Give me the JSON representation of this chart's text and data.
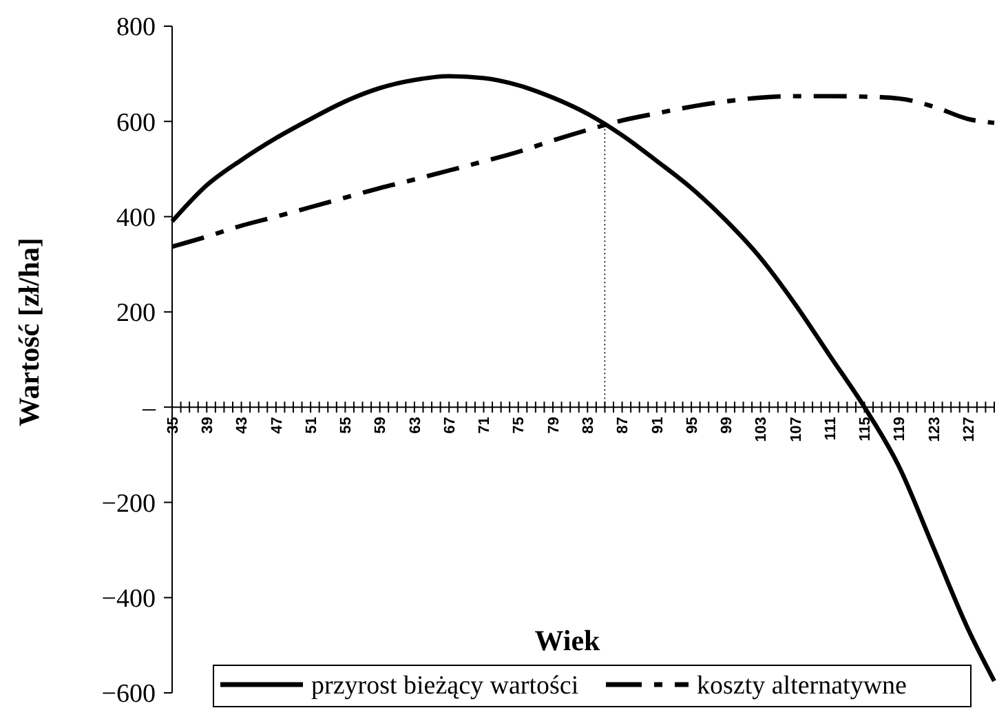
{
  "chart_data": {
    "type": "line",
    "xlabel": "Wiek",
    "ylabel": "Wartość [zł/ha]",
    "xlim": [
      35,
      130
    ],
    "ylim": [
      -600,
      800
    ],
    "yticks": [
      -600,
      -400,
      -200,
      {
        "value": 0,
        "label": "–"
      },
      200,
      400,
      600,
      800
    ],
    "xticks": [
      35,
      {
        "value": 36,
        "label": null
      },
      {
        "value": 37,
        "label": null
      },
      {
        "value": 38,
        "label": null
      },
      39,
      {
        "value": 40,
        "label": null
      },
      {
        "value": 41,
        "label": null
      },
      {
        "value": 42,
        "label": null
      },
      43,
      {
        "value": 44,
        "label": null
      },
      {
        "value": 45,
        "label": null
      },
      {
        "value": 46,
        "label": null
      },
      47,
      {
        "value": 48,
        "label": null
      },
      {
        "value": 49,
        "label": null
      },
      {
        "value": 50,
        "label": null
      },
      51,
      {
        "value": 52,
        "label": null
      },
      {
        "value": 53,
        "label": null
      },
      {
        "value": 54,
        "label": null
      },
      55,
      {
        "value": 56,
        "label": null
      },
      {
        "value": 57,
        "label": null
      },
      {
        "value": 58,
        "label": null
      },
      59,
      {
        "value": 60,
        "label": null
      },
      {
        "value": 61,
        "label": null
      },
      {
        "value": 62,
        "label": null
      },
      63,
      {
        "value": 64,
        "label": null
      },
      {
        "value": 65,
        "label": null
      },
      {
        "value": 66,
        "label": null
      },
      67,
      {
        "value": 68,
        "label": null
      },
      {
        "value": 69,
        "label": null
      },
      {
        "value": 70,
        "label": null
      },
      71,
      {
        "value": 72,
        "label": null
      },
      {
        "value": 73,
        "label": null
      },
      {
        "value": 74,
        "label": null
      },
      75,
      {
        "value": 76,
        "label": null
      },
      {
        "value": 77,
        "label": null
      },
      {
        "value": 78,
        "label": null
      },
      79,
      {
        "value": 80,
        "label": null
      },
      {
        "value": 81,
        "label": null
      },
      {
        "value": 82,
        "label": null
      },
      83,
      {
        "value": 84,
        "label": null
      },
      {
        "value": 85,
        "label": null
      },
      {
        "value": 86,
        "label": null
      },
      87,
      {
        "value": 88,
        "label": null
      },
      {
        "value": 89,
        "label": null
      },
      {
        "value": 90,
        "label": null
      },
      91,
      {
        "value": 92,
        "label": null
      },
      {
        "value": 93,
        "label": null
      },
      {
        "value": 94,
        "label": null
      },
      95,
      {
        "value": 96,
        "label": null
      },
      {
        "value": 97,
        "label": null
      },
      {
        "value": 98,
        "label": null
      },
      99,
      {
        "value": 100,
        "label": null
      },
      {
        "value": 101,
        "label": null
      },
      {
        "value": 102,
        "label": null
      },
      103,
      {
        "value": 104,
        "label": null
      },
      {
        "value": 105,
        "label": null
      },
      {
        "value": 106,
        "label": null
      },
      107,
      {
        "value": 108,
        "label": null
      },
      {
        "value": 109,
        "label": null
      },
      {
        "value": 110,
        "label": null
      },
      111,
      {
        "value": 112,
        "label": null
      },
      {
        "value": 113,
        "label": null
      },
      {
        "value": 114,
        "label": null
      },
      115,
      {
        "value": 116,
        "label": null
      },
      {
        "value": 117,
        "label": null
      },
      {
        "value": 118,
        "label": null
      },
      119,
      {
        "value": 120,
        "label": null
      },
      {
        "value": 121,
        "label": null
      },
      {
        "value": 122,
        "label": null
      },
      123,
      {
        "value": 124,
        "label": null
      },
      {
        "value": 125,
        "label": null
      },
      {
        "value": 126,
        "label": null
      },
      127,
      {
        "value": 128,
        "label": null
      },
      {
        "value": 129,
        "label": null
      },
      {
        "value": 130,
        "label": null
      }
    ],
    "x": [
      35,
      39,
      43,
      47,
      51,
      55,
      59,
      63,
      67,
      71,
      75,
      79,
      83,
      87,
      91,
      95,
      99,
      103,
      107,
      111,
      115,
      119,
      123,
      127,
      130
    ],
    "series": [
      {
        "name": "przyrost bieżący wartości",
        "color": "#000000",
        "line_style": "solid",
        "values": [
          390,
          466,
          519,
          565,
          605,
          642,
          670,
          687,
          695,
          691,
          676,
          650,
          616,
          571,
          517,
          460,
          392,
          313,
          216,
          108,
          0,
          -125,
          -296,
          -467,
          -575
        ]
      },
      {
        "name": "koszty alternatywne",
        "color": "#000000",
        "line_style": "dashed",
        "values": [
          337,
          358,
          381,
          400,
          420,
          440,
          460,
          478,
          497,
          516,
          536,
          560,
          582,
          602,
          617,
          631,
          642,
          650,
          653,
          653,
          652,
          648,
          631,
          605,
          597
        ]
      }
    ],
    "ref_lines": [
      {
        "axis": "x",
        "value": 85,
        "line_style": "dotted",
        "color": "#000000"
      }
    ],
    "grid": false,
    "legend": "bottom",
    "marker": "none"
  }
}
